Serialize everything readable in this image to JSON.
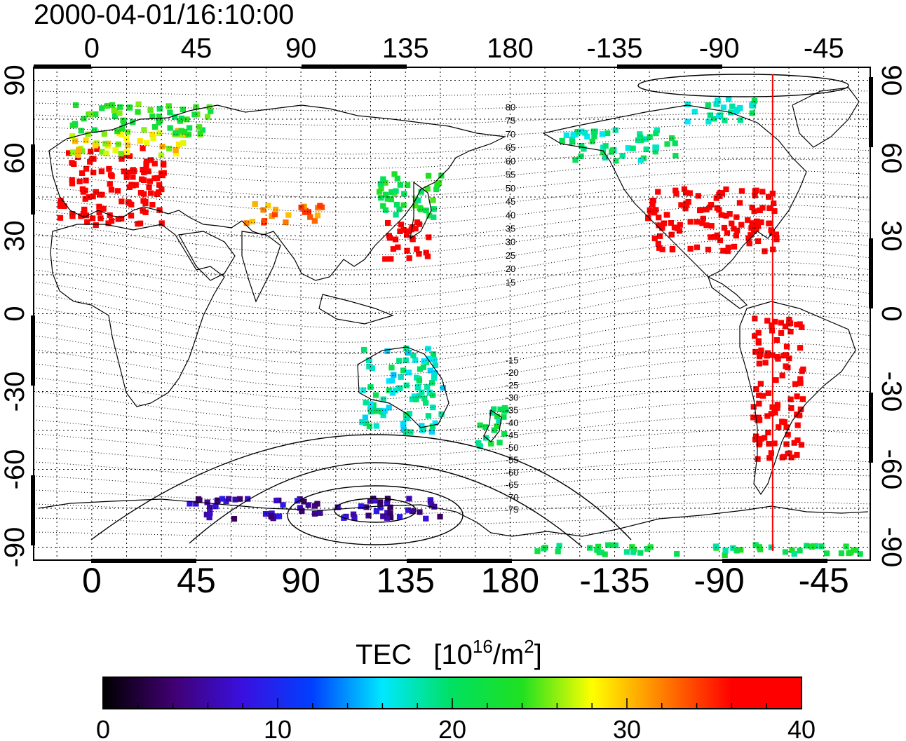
{
  "timestamp": "2000-04-01/16:10:00",
  "axes": {
    "lon_ticks": [
      "0",
      "45",
      "90",
      "135",
      "180",
      "-135",
      "-90",
      "-45"
    ],
    "lat_ticks": [
      "90",
      "60",
      "30",
      "0",
      "-30",
      "-60",
      "-90"
    ],
    "lon_range_deg": [
      -25,
      335
    ],
    "lat_range_deg": [
      -95,
      95
    ],
    "grid": "dotted every 15 deg"
  },
  "colorbar": {
    "title": "TEC",
    "unit_base": "[10",
    "unit_exp": "16",
    "unit_mid": "/m",
    "unit_exp2": "2",
    "unit_end": "]",
    "tick_labels": [
      "0",
      "10",
      "20",
      "30",
      "40"
    ],
    "min": 0,
    "max": 40,
    "stops": [
      "#000000",
      "#400070",
      "#3a10e0",
      "#0040ff",
      "#00e8ff",
      "#00e060",
      "#20e020",
      "#ffff00",
      "#ff8000",
      "#ff0000",
      "#ff0000"
    ]
  },
  "magnetic_latitude_labels": [
    "80",
    "75",
    "70",
    "65",
    "60",
    "55",
    "50",
    "45",
    "40",
    "35",
    "30",
    "25",
    "20",
    "15",
    "-15",
    "-20",
    "-25",
    "-30",
    "-35",
    "-40",
    "-45",
    "-50",
    "-55",
    "-60",
    "-65",
    "-70",
    "-75"
  ],
  "marker": {
    "longitude_deg": -67,
    "color": "#ff0000"
  },
  "chart_data": {
    "type": "heatmap",
    "title": "2000-04-01/16:10:00",
    "xlabel": "",
    "ylabel": "",
    "xlim": [
      -25,
      335
    ],
    "ylim": [
      -95,
      95
    ],
    "value_unit": "TEC [10^16/m^2]",
    "regions": [
      {
        "lon": [
          -15,
          30
        ],
        "lat": [
          35,
          65
        ],
        "tec": 40
      },
      {
        "lon": [
          -10,
          40
        ],
        "lat": [
          62,
          72
        ],
        "tec": 28
      },
      {
        "lon": [
          -10,
          50
        ],
        "lat": [
          70,
          82
        ],
        "tec": 23
      },
      {
        "lon": [
          65,
          100
        ],
        "lat": [
          36,
          44
        ],
        "tec": 32
      },
      {
        "lon": [
          125,
          145
        ],
        "lat": [
          22,
          38
        ],
        "tec": 40
      },
      {
        "lon": [
          122,
          150
        ],
        "lat": [
          38,
          55
        ],
        "tec": 22
      },
      {
        "lon": [
          238,
          295
        ],
        "lat": [
          25,
          50
        ],
        "tec": 40
      },
      {
        "lon": [
          200,
          250
        ],
        "lat": [
          60,
          72
        ],
        "tec": 19
      },
      {
        "lon": [
          255,
          290
        ],
        "lat": [
          75,
          84
        ],
        "tec": 18
      },
      {
        "lon": [
          283,
          305
        ],
        "lat": [
          -55,
          0
        ],
        "tec": 40
      },
      {
        "lon": [
          115,
          150
        ],
        "lat": [
          -45,
          -12
        ],
        "tec": 18
      },
      {
        "lon": [
          165,
          180
        ],
        "lat": [
          -50,
          -35
        ],
        "tec": 20
      },
      {
        "lon": [
          40,
          150
        ],
        "lat": [
          -78,
          -70
        ],
        "tec": 6
      },
      {
        "lon": [
          180,
          330
        ],
        "lat": [
          -92,
          -88
        ],
        "tec": 21
      }
    ]
  }
}
